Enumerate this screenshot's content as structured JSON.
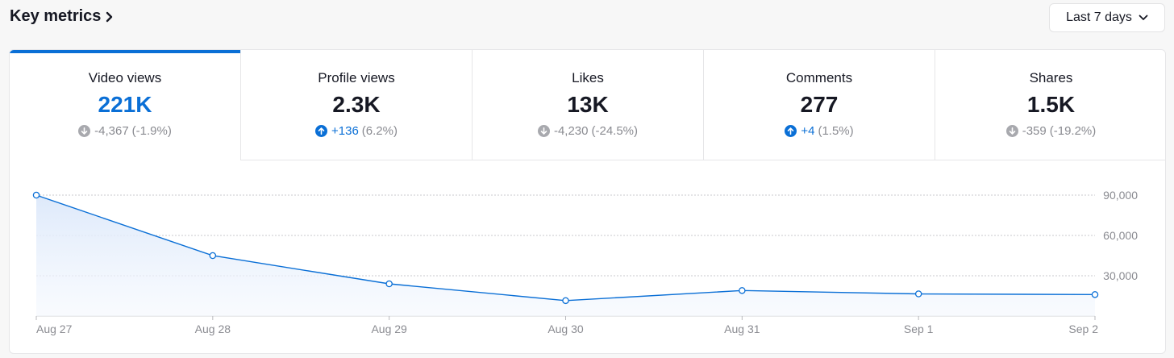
{
  "header": {
    "title": "Key metrics",
    "range_label": "Last 7 days"
  },
  "tabs": [
    {
      "label": "Video views",
      "value": "221K",
      "direction": "down",
      "delta": "-4,367",
      "pct": "(-1.9%)",
      "active": true
    },
    {
      "label": "Profile views",
      "value": "2.3K",
      "direction": "up",
      "delta": "+136",
      "pct": "(6.2%)",
      "active": false
    },
    {
      "label": "Likes",
      "value": "13K",
      "direction": "down",
      "delta": "-4,230",
      "pct": "(-24.5%)",
      "active": false
    },
    {
      "label": "Comments",
      "value": "277",
      "direction": "up",
      "delta": "+4",
      "pct": "(1.5%)",
      "active": false
    },
    {
      "label": "Shares",
      "value": "1.5K",
      "direction": "down",
      "delta": "-359",
      "pct": "(-19.2%)",
      "active": false
    }
  ],
  "colors": {
    "accent": "#0a6fd6",
    "muted": "#8a8b91",
    "fill": "#eaf1fc"
  },
  "chart_data": {
    "type": "area",
    "title": "Video views",
    "categories": [
      "Aug 27",
      "Aug 28",
      "Aug 29",
      "Aug 30",
      "Aug 31",
      "Sep 1",
      "Sep 2"
    ],
    "values": [
      90000,
      45000,
      24000,
      11500,
      19000,
      16500,
      16000
    ],
    "ylim": [
      0,
      90000
    ],
    "yticks": [
      30000,
      60000,
      90000
    ],
    "ytick_labels": [
      "30,000",
      "60,000",
      "90,000"
    ],
    "grid": true
  }
}
